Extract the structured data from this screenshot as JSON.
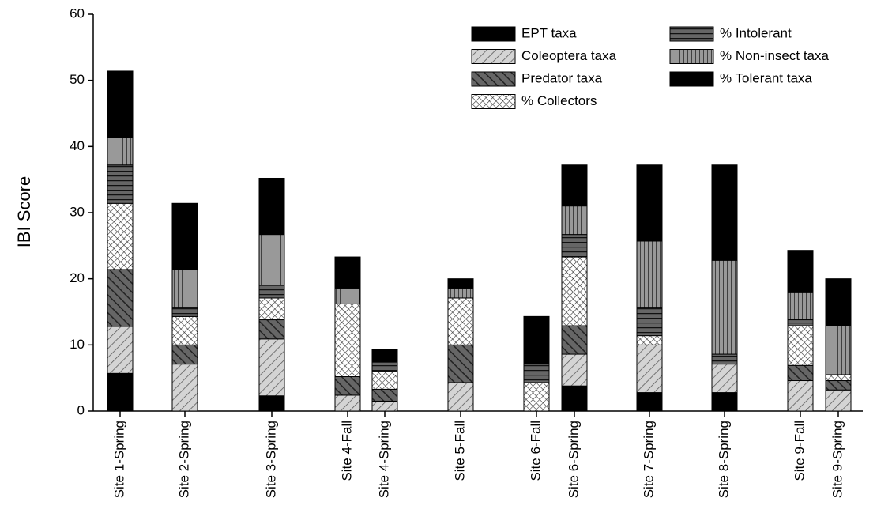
{
  "chart_data": {
    "type": "stacked-bar",
    "y_label": "IBI Score",
    "categories": [
      "Site 1-Spring",
      "Site 2-Spring",
      "Site 3-Spring",
      "Site 4-Fall",
      "Site 4-Spring",
      "Site 5-Fall",
      "Site 6-Fall",
      "Site 6-Spring",
      "Site 7-Spring",
      "Site 8-Spring",
      "Site 9-Fall",
      "Site 9-Spring"
    ],
    "series": [
      {
        "name": "EPT taxa",
        "color": "#000000",
        "pattern": "solid",
        "values": [
          5.7,
          0,
          2.3,
          0,
          0,
          0,
          0,
          3.8,
          2.8,
          2.8,
          0,
          0
        ]
      },
      {
        "name": "Coleoptera taxa",
        "color": "#c8c8c8",
        "pattern": "diagonal",
        "values": [
          7.1,
          7.1,
          8.6,
          2.4,
          1.5,
          4.3,
          0,
          4.8,
          7.2,
          4.3,
          4.6,
          3.2
        ]
      },
      {
        "name": "Predator taxa",
        "color": "#606060",
        "pattern": "dark-diagonal",
        "values": [
          8.6,
          2.9,
          2.9,
          2.8,
          1.8,
          5.7,
          0,
          4.3,
          0,
          0,
          2.3,
          1.4
        ]
      },
      {
        "name": "% Collectors",
        "color": "#ffffff",
        "pattern": "crosshatch",
        "values": [
          10,
          4.3,
          3.3,
          11,
          2.7,
          7.1,
          4.3,
          10.4,
          1.4,
          0,
          6,
          0.9
        ]
      },
      {
        "name": "% Intolerant",
        "color": "#555555",
        "pattern": "horizontal",
        "values": [
          5.8,
          1.4,
          1.9,
          0,
          1.4,
          0,
          2.8,
          3.4,
          4.3,
          1.5,
          0.9,
          0
        ]
      },
      {
        "name": "% Non-insect taxa",
        "color": "#8a8a8a",
        "pattern": "vertical",
        "values": [
          4.2,
          5.7,
          7.7,
          2.4,
          0,
          1.5,
          0,
          4.3,
          10,
          14.2,
          4.1,
          7.4
        ]
      },
      {
        "name": "% Tolerant taxa",
        "color": "#000000",
        "pattern": "solid",
        "values": [
          10,
          10,
          8.5,
          4.7,
          1.9,
          1.4,
          7.2,
          6.2,
          11.5,
          14.4,
          6.4,
          7.1
        ]
      }
    ],
    "ylim": [
      0,
      60
    ],
    "yticks": [
      0,
      10,
      20,
      30,
      40,
      50,
      60
    ],
    "legend": "top-right"
  }
}
